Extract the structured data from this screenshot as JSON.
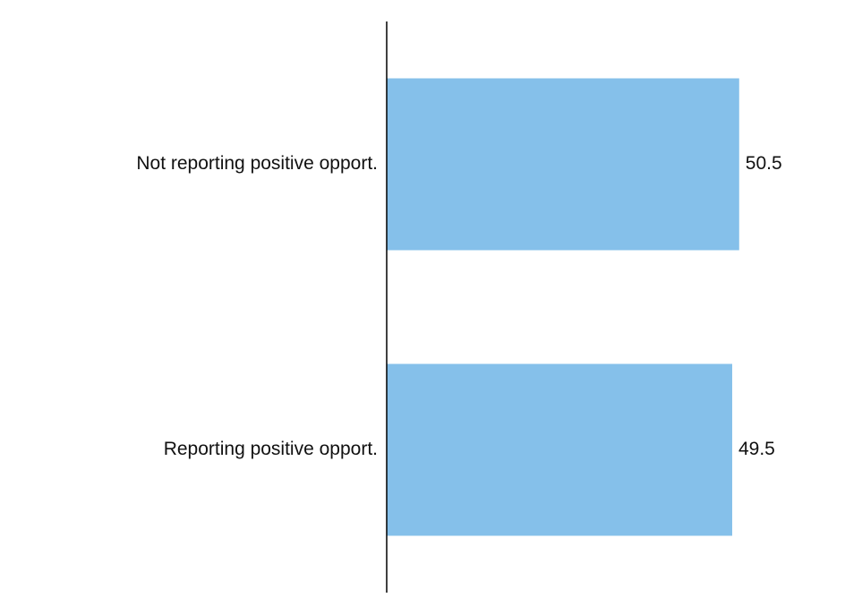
{
  "chart_data": {
    "type": "bar",
    "orientation": "horizontal",
    "categories": [
      "Not reporting positive opport.",
      "Reporting positive opport."
    ],
    "values": [
      50.5,
      49.5
    ],
    "value_labels": [
      "50.5",
      "49.5"
    ],
    "title": "",
    "xlabel": "",
    "ylabel": "",
    "xlim": [
      0,
      56.3
    ],
    "grid": false,
    "legend": "none",
    "bar_color": "#85C0EA",
    "axis_color": "#000000"
  }
}
